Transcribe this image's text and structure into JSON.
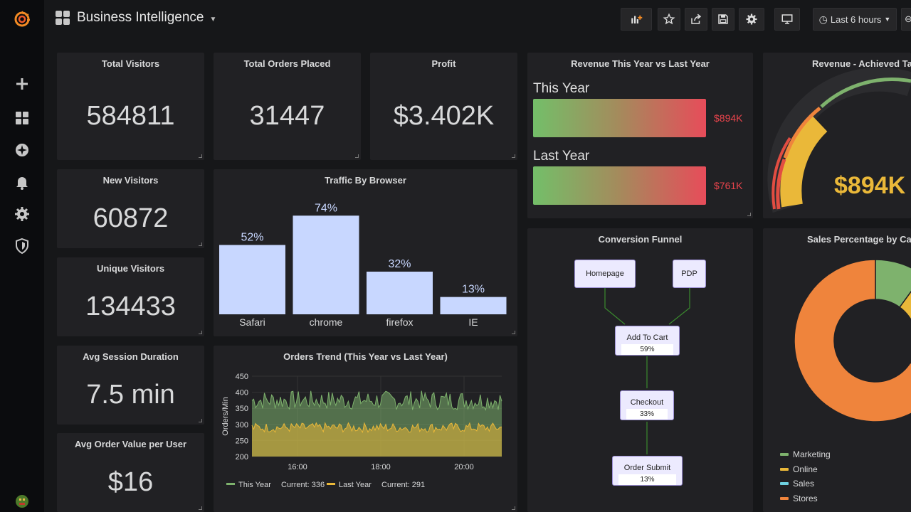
{
  "header": {
    "title": "Business Intelligence",
    "time_range": "Last 6 hours"
  },
  "stats": {
    "total_visitors": {
      "title": "Total Visitors",
      "value": "584811"
    },
    "total_orders": {
      "title": "Total Orders Placed",
      "value": "31447"
    },
    "profit": {
      "title": "Profit",
      "value": "$3.402K"
    },
    "new_visitors": {
      "title": "New Visitors",
      "value": "60872"
    },
    "unique_visitors": {
      "title": "Unique Visitors",
      "value": "134433"
    },
    "avg_session": {
      "title": "Avg Session Duration",
      "value": "7.5 min"
    },
    "avg_order": {
      "title": "Avg Order Value per User",
      "value": "$16"
    }
  },
  "revenue_compare": {
    "title": "Revenue This Year vs Last Year",
    "this_year_label": "This Year",
    "this_year_value": "$894K",
    "last_year_label": "Last Year",
    "last_year_value": "$761K"
  },
  "gauge": {
    "title": "Revenue - Achieved Tar",
    "value": "$894K"
  },
  "funnel": {
    "title": "Conversion Funnel",
    "nodes": {
      "homepage": "Homepage",
      "pdp": "PDP",
      "cart": "Add To Cart",
      "cart_pct": "59%",
      "checkout": "Checkout",
      "checkout_pct": "33%",
      "submit": "Order Submit",
      "submit_pct": "13%"
    }
  },
  "sales_pct": {
    "title": "Sales Percentage by Cat",
    "legend": [
      "Marketing",
      "Online",
      "Sales",
      "Stores"
    ],
    "colors": [
      "#7eb26d",
      "#eab839",
      "#6ed0e0",
      "#ef843c"
    ]
  },
  "chart_data": [
    {
      "type": "bar",
      "title": "Traffic By Browser",
      "categories": [
        "Safari",
        "chrome",
        "firefox",
        "IE"
      ],
      "values": [
        52,
        74,
        32,
        13
      ],
      "value_labels": [
        "52%",
        "74%",
        "32%",
        "13%"
      ],
      "ylim": [
        0,
        80
      ],
      "color": "#c8d7ff"
    },
    {
      "type": "area",
      "title": "Orders Trend (This Year vs Last Year)",
      "ylabel": "Orders/Min",
      "ylim": [
        200,
        450
      ],
      "yticks": [
        "200",
        "250",
        "300",
        "350",
        "400",
        "450"
      ],
      "xticks": [
        "16:00",
        "18:00",
        "20:00"
      ],
      "series": [
        {
          "name": "This Year",
          "current_label": "Current: 336",
          "color": "#7eb26d",
          "mean": 375,
          "spread": 30
        },
        {
          "name": "Last Year",
          "current_label": "Current: 291",
          "color": "#eab839",
          "mean": 290,
          "spread": 15
        }
      ]
    },
    {
      "type": "pie",
      "title": "Sales Percentage by Cat",
      "labels": [
        "Marketing",
        "Online",
        "Sales",
        "Stores"
      ],
      "values": [
        10,
        12,
        12,
        66
      ]
    }
  ]
}
